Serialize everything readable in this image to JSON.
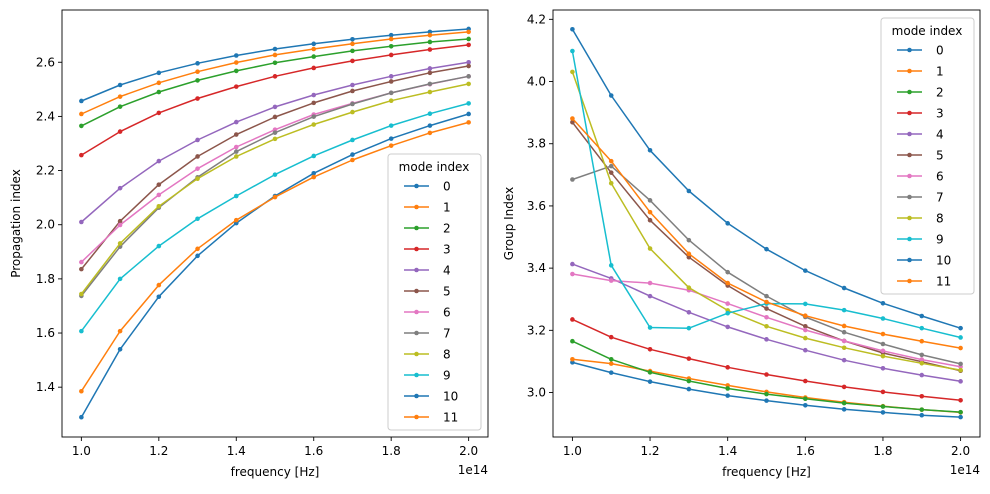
{
  "chart_data": [
    {
      "type": "line",
      "title": "",
      "xlabel": "frequency [Hz]",
      "ylabel": "Propagation index",
      "x_offset_text": "1e14",
      "xlim": [
        0.95,
        2.05
      ],
      "ylim": [
        1.216,
        2.793
      ],
      "xticks": [
        1.0,
        1.2,
        1.4,
        1.6,
        1.8,
        2.0
      ],
      "xtick_labels": [
        "1.0",
        "1.2",
        "1.4",
        "1.6",
        "1.8",
        "2.0"
      ],
      "yticks": [
        1.4,
        1.6,
        1.8,
        2.0,
        2.2,
        2.4,
        2.6
      ],
      "ytick_labels": [
        "1.4",
        "1.6",
        "1.8",
        "2.0",
        "2.2",
        "2.4",
        "2.6"
      ],
      "grid": false,
      "legend": {
        "title": "mode index",
        "placement": "lower right"
      },
      "x": [
        1.0,
        1.1,
        1.2,
        1.3,
        1.4,
        1.5,
        1.6,
        1.7,
        1.8,
        1.9,
        2.0
      ],
      "series": [
        {
          "name": "0",
          "color": "#1f77b4",
          "values": [
            2.457,
            2.516,
            2.561,
            2.596,
            2.625,
            2.649,
            2.668,
            2.685,
            2.7,
            2.712,
            2.723
          ]
        },
        {
          "name": "1",
          "color": "#ff7f0e",
          "values": [
            2.409,
            2.473,
            2.524,
            2.565,
            2.599,
            2.627,
            2.649,
            2.668,
            2.686,
            2.7,
            2.712
          ]
        },
        {
          "name": "2",
          "color": "#2ca02c",
          "values": [
            2.365,
            2.436,
            2.49,
            2.533,
            2.568,
            2.598,
            2.621,
            2.642,
            2.659,
            2.675,
            2.686
          ]
        },
        {
          "name": "3",
          "color": "#d62728",
          "values": [
            2.257,
            2.344,
            2.413,
            2.466,
            2.51,
            2.548,
            2.579,
            2.605,
            2.627,
            2.647,
            2.664
          ]
        },
        {
          "name": "4",
          "color": "#9467bd",
          "values": [
            2.01,
            2.135,
            2.235,
            2.313,
            2.379,
            2.435,
            2.479,
            2.516,
            2.548,
            2.577,
            2.6
          ]
        },
        {
          "name": "5",
          "color": "#8c564b",
          "values": [
            1.836,
            2.013,
            2.148,
            2.252,
            2.333,
            2.398,
            2.45,
            2.494,
            2.529,
            2.561,
            2.586
          ]
        },
        {
          "name": "6",
          "color": "#e377c2",
          "values": [
            1.862,
            1.999,
            2.11,
            2.207,
            2.287,
            2.351,
            2.407,
            2.448,
            2.487,
            2.519,
            2.548
          ]
        },
        {
          "name": "7",
          "color": "#7f7f7f",
          "values": [
            1.737,
            1.919,
            2.063,
            2.175,
            2.27,
            2.34,
            2.399,
            2.446,
            2.487,
            2.52,
            2.548
          ]
        },
        {
          "name": "8",
          "color": "#bcbd22",
          "values": [
            1.744,
            1.931,
            2.068,
            2.17,
            2.252,
            2.317,
            2.37,
            2.416,
            2.458,
            2.49,
            2.52
          ]
        },
        {
          "name": "9",
          "color": "#17becf",
          "values": [
            1.607,
            1.8,
            1.921,
            2.022,
            2.106,
            2.185,
            2.254,
            2.313,
            2.366,
            2.41,
            2.448
          ]
        },
        {
          "name": "10",
          "color": "#1f77b4",
          "values": [
            1.289,
            1.54,
            1.734,
            1.885,
            2.006,
            2.106,
            2.19,
            2.259,
            2.318,
            2.366,
            2.409
          ]
        },
        {
          "name": "11",
          "color": "#ff7f0e",
          "values": [
            1.385,
            1.607,
            1.777,
            1.911,
            2.017,
            2.102,
            2.176,
            2.239,
            2.292,
            2.339,
            2.378
          ]
        }
      ]
    },
    {
      "type": "line",
      "title": "",
      "xlabel": "frequency [Hz]",
      "ylabel": "Group Index",
      "x_offset_text": "1e14",
      "xlim": [
        0.95,
        2.05
      ],
      "ylim": [
        2.857,
        4.23
      ],
      "xticks": [
        1.0,
        1.2,
        1.4,
        1.6,
        1.8,
        2.0
      ],
      "xtick_labels": [
        "1.0",
        "1.2",
        "1.4",
        "1.6",
        "1.8",
        "2.0"
      ],
      "yticks": [
        3.0,
        3.2,
        3.4,
        3.6,
        3.8,
        4.0,
        4.2
      ],
      "ytick_labels": [
        "3.0",
        "3.2",
        "3.4",
        "3.6",
        "3.8",
        "4.0",
        "4.2"
      ],
      "grid": false,
      "legend": {
        "title": "mode index",
        "placement": "upper right"
      },
      "x": [
        1.0,
        1.1,
        1.2,
        1.3,
        1.4,
        1.5,
        1.6,
        1.7,
        1.8,
        1.9,
        2.0
      ],
      "series": [
        {
          "name": "0",
          "color": "#1f77b4",
          "values": [
            3.097,
            3.064,
            3.035,
            3.011,
            2.99,
            2.974,
            2.959,
            2.946,
            2.936,
            2.927,
            2.921
          ]
        },
        {
          "name": "1",
          "color": "#ff7f0e",
          "values": [
            3.107,
            3.093,
            3.069,
            3.045,
            3.023,
            3.002,
            2.984,
            2.969,
            2.956,
            2.945,
            2.936
          ]
        },
        {
          "name": "2",
          "color": "#2ca02c",
          "values": [
            3.165,
            3.107,
            3.065,
            3.037,
            3.013,
            2.995,
            2.98,
            2.966,
            2.955,
            2.945,
            2.937
          ]
        },
        {
          "name": "3",
          "color": "#d62728",
          "values": [
            3.235,
            3.178,
            3.139,
            3.109,
            3.081,
            3.058,
            3.037,
            3.018,
            3.002,
            2.988,
            2.975
          ]
        },
        {
          "name": "4",
          "color": "#9467bd",
          "values": [
            3.413,
            3.367,
            3.31,
            3.258,
            3.211,
            3.171,
            3.136,
            3.104,
            3.078,
            3.056,
            3.036
          ]
        },
        {
          "name": "5",
          "color": "#8c564b",
          "values": [
            3.869,
            3.707,
            3.554,
            3.435,
            3.344,
            3.27,
            3.213,
            3.166,
            3.127,
            3.099,
            3.07
          ]
        },
        {
          "name": "6",
          "color": "#e377c2",
          "values": [
            3.381,
            3.36,
            3.352,
            3.329,
            3.286,
            3.242,
            3.201,
            3.166,
            3.134,
            3.106,
            3.083
          ]
        },
        {
          "name": "7",
          "color": "#7f7f7f",
          "values": [
            3.685,
            3.728,
            3.618,
            3.49,
            3.387,
            3.31,
            3.243,
            3.194,
            3.156,
            3.121,
            3.092
          ]
        },
        {
          "name": "8",
          "color": "#bcbd22",
          "values": [
            4.031,
            3.673,
            3.463,
            3.337,
            3.264,
            3.213,
            3.175,
            3.144,
            3.117,
            3.094,
            3.072
          ]
        },
        {
          "name": "9",
          "color": "#17becf",
          "values": [
            4.098,
            3.409,
            3.209,
            3.207,
            3.255,
            3.286,
            3.285,
            3.265,
            3.238,
            3.207,
            3.177
          ]
        },
        {
          "name": "10",
          "color": "#1f77b4",
          "values": [
            4.168,
            3.955,
            3.779,
            3.648,
            3.544,
            3.461,
            3.392,
            3.336,
            3.287,
            3.246,
            3.207
          ]
        },
        {
          "name": "11",
          "color": "#ff7f0e",
          "values": [
            3.881,
            3.744,
            3.58,
            3.446,
            3.352,
            3.291,
            3.247,
            3.214,
            3.188,
            3.165,
            3.143
          ]
        }
      ]
    }
  ]
}
